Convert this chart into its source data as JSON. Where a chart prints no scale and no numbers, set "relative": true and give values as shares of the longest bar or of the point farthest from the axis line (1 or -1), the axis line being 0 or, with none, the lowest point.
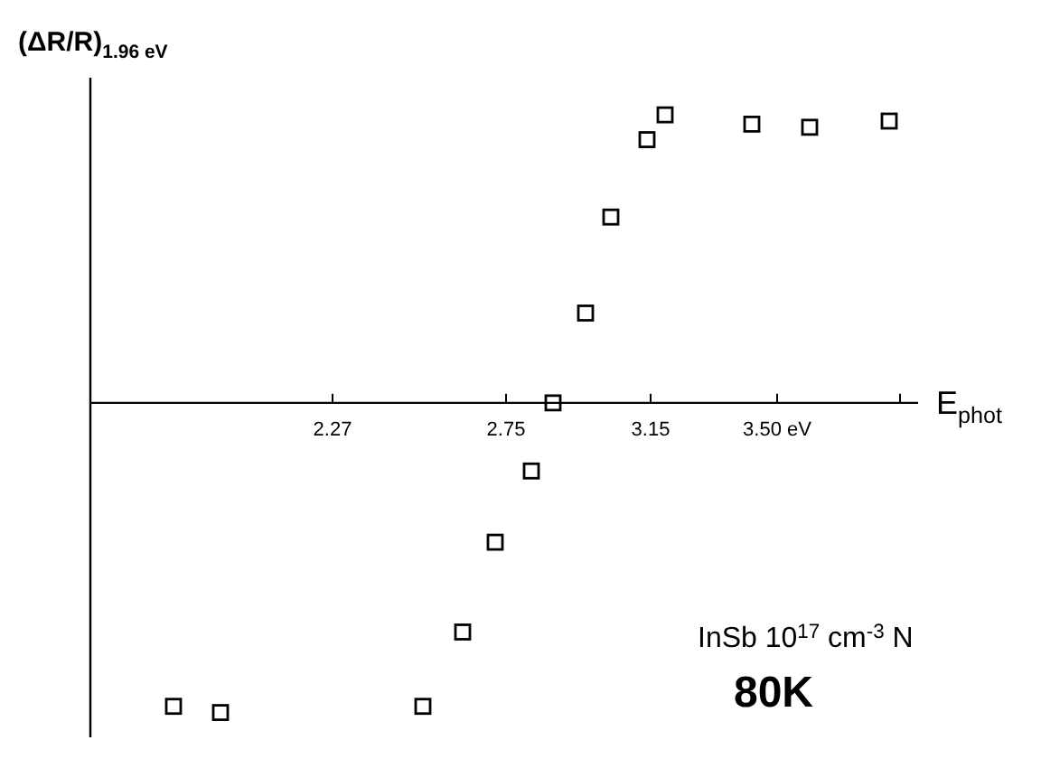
{
  "chart_data": {
    "type": "scatter",
    "relative": true,
    "ylabel": "(ΔR/R)$_{1.96 eV}$",
    "xlabel": "E$_{phot}$",
    "x": [
      1.83,
      1.96,
      2.52,
      2.63,
      2.72,
      2.82,
      2.88,
      2.97,
      3.04,
      3.14,
      3.19,
      3.43,
      3.59,
      3.81
    ],
    "xlim": [
      1.6,
      3.89
    ],
    "xticks": [
      2.27,
      2.75,
      3.15,
      {
        "value": 3.5,
        "label": "3.50 eV"
      },
      {
        "value": 3.84,
        "label": null
      }
    ],
    "series": [
      {
        "color": "#000000",
        "values": [
          -0.98,
          -1.0,
          -0.98,
          -0.74,
          -0.45,
          -0.22,
          0.0,
          0.29,
          0.6,
          0.85,
          0.93,
          0.9,
          0.89,
          0.91
        ]
      }
    ],
    "marker": "square",
    "annotations": [
      "InSb  10$^{17}$ cm$^{-3}$ N",
      "80K"
    ]
  }
}
